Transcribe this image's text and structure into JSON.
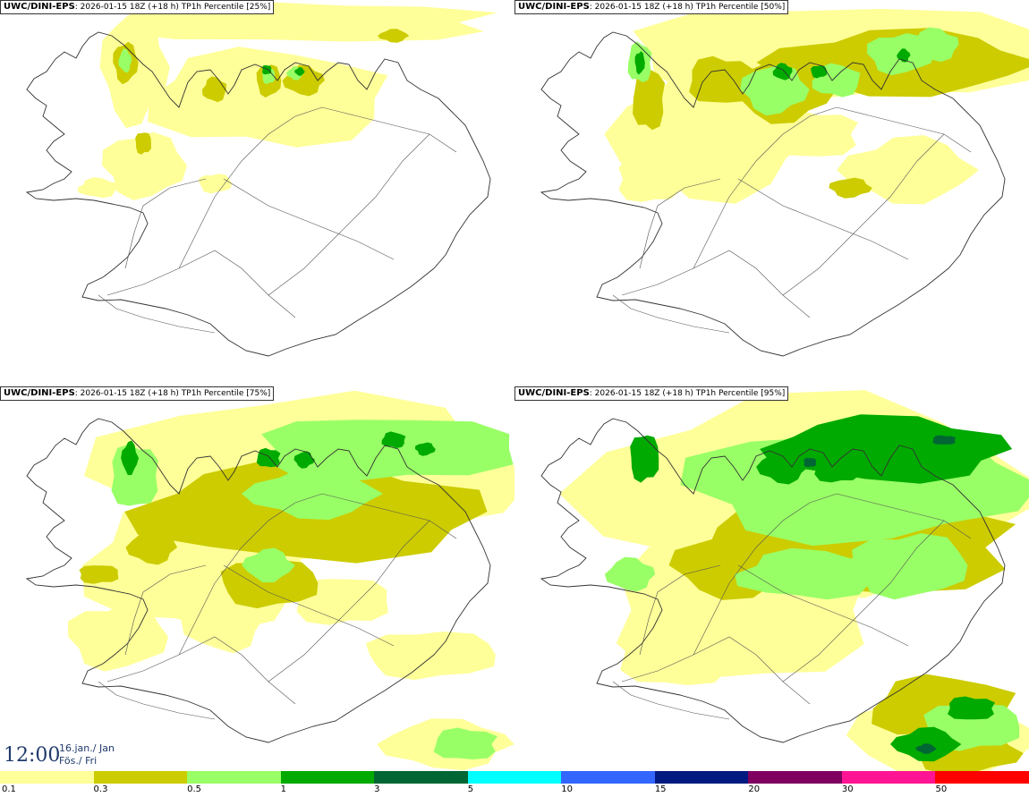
{
  "panels": [
    {
      "model": "UWC/DINI-EPS",
      "run": "2026-01-15 18Z (+18 h)",
      "field": "TP1h Percentile [25%]",
      "level": 0
    },
    {
      "model": "UWC/DINI-EPS",
      "run": "2026-01-15 18Z (+18 h)",
      "field": "TP1h Percentile [50%]",
      "level": 1
    },
    {
      "model": "UWC/DINI-EPS",
      "run": "2026-01-15 18Z (+18 h)",
      "field": "TP1h Percentile [75%]",
      "level": 2
    },
    {
      "model": "UWC/DINI-EPS",
      "run": "2026-01-15 18Z (+18 h)",
      "field": "TP1h Percentile [95%]",
      "level": 3
    }
  ],
  "time": {
    "clock": "12:00",
    "date_line1": "16.jan./ Jan",
    "date_line2": "Fös./ Fri"
  },
  "legend": {
    "colors": [
      "#ffff99",
      "#cccc00",
      "#99ff66",
      "#00aa00",
      "#006633",
      "#00ffff",
      "#3366ff",
      "#001a80",
      "#800060",
      "#ff1493",
      "#ff0000"
    ],
    "ticks": [
      "0.1",
      "0.3",
      "0.5",
      "1",
      "3",
      "5",
      "10",
      "15",
      "20",
      "30",
      "50"
    ]
  }
}
